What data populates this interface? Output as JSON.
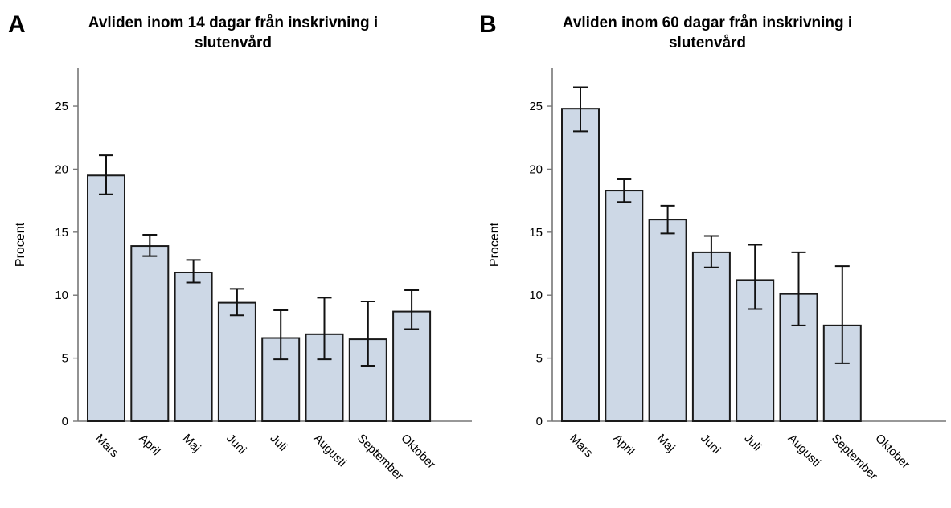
{
  "panels": [
    {
      "letter": "A",
      "title_line1": "Avliden inom 14 dagar från inskrivning i",
      "title_line2": "slutenvård"
    },
    {
      "letter": "B",
      "title_line1": "Avliden inom 60 dagar från inskrivning i",
      "title_line2": "slutenvård"
    }
  ],
  "colors": {
    "bar_fill": "#cdd8e6",
    "bar_stroke": "#1a1a1a",
    "axis": "#777777"
  },
  "chart_data": [
    {
      "type": "bar",
      "title": "Avliden inom 14 dagar från inskrivning i slutenvård",
      "ylabel": "Procent",
      "xlabel": "",
      "ylim": [
        0,
        28
      ],
      "yticks": [
        0,
        5,
        10,
        15,
        20,
        25
      ],
      "categories": [
        "Mars",
        "April",
        "Maj",
        "Juni",
        "Juli",
        "Augusti",
        "September",
        "Oktober"
      ],
      "values": [
        19.5,
        13.9,
        11.8,
        9.4,
        6.6,
        6.9,
        6.5,
        8.7
      ],
      "error_low": [
        18.0,
        13.1,
        11.0,
        8.4,
        4.9,
        4.9,
        4.4,
        7.3
      ],
      "error_high": [
        21.1,
        14.8,
        12.8,
        10.5,
        8.8,
        9.8,
        9.5,
        10.4
      ],
      "grid": false
    },
    {
      "type": "bar",
      "title": "Avliden inom 60 dagar från inskrivning i slutenvård",
      "ylabel": "Procent",
      "xlabel": "",
      "ylim": [
        0,
        28
      ],
      "yticks": [
        0,
        5,
        10,
        15,
        20,
        25
      ],
      "categories": [
        "Mars",
        "April",
        "Maj",
        "Juni",
        "Juli",
        "Augusti",
        "September",
        "Oktober"
      ],
      "values": [
        24.8,
        18.3,
        16.0,
        13.4,
        11.2,
        10.1,
        7.6,
        null
      ],
      "error_low": [
        23.0,
        17.4,
        14.9,
        12.2,
        8.9,
        7.6,
        4.6,
        null
      ],
      "error_high": [
        26.5,
        19.2,
        17.1,
        14.7,
        14.0,
        13.4,
        12.3,
        null
      ],
      "grid": false
    }
  ]
}
